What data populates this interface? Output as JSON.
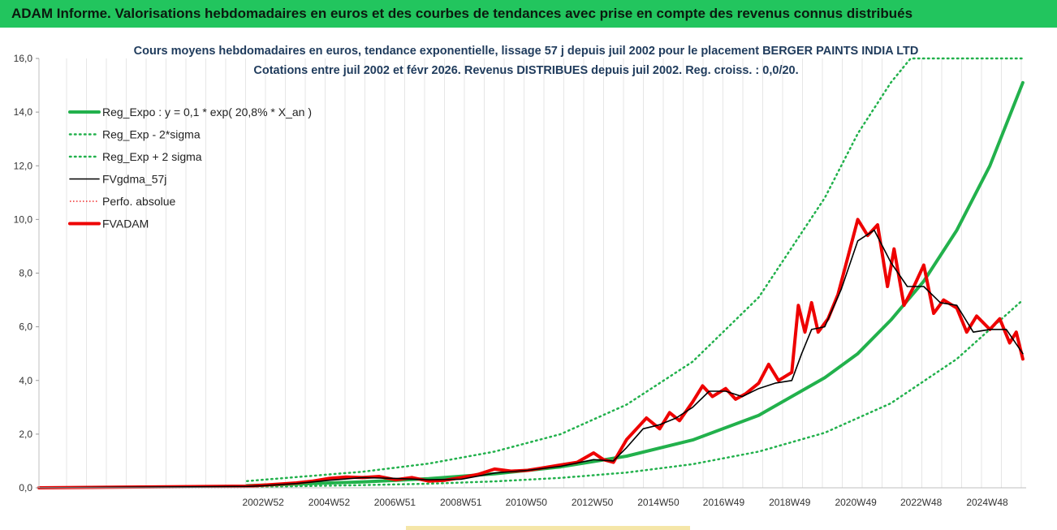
{
  "banner": {
    "title": "ADAM Informe. Valorisations hebdomadaires en euros et des courbes de tendances avec prise en compte des revenus connus distribués"
  },
  "colors": {
    "banner": "#22c55e",
    "trend": "#22b14c",
    "sigma": "#22b14c",
    "smooth": "#000000",
    "price": "#ee0000",
    "perf": "#ee0000"
  },
  "chart_data": {
    "type": "line",
    "title_lines": [
      "Cours moyens hebdomadaires en euros, tendance exponentielle, lissage 57 j depuis juil 2002 pour le placement BERGER PAINTS INDIA LTD",
      "Cotations entre juil 2002 et févr 2026. Revenus DISTRIBUES depuis juil 2002. Reg. croiss. : 0,0/20."
    ],
    "ylim": [
      0,
      16
    ],
    "xlim": [
      1996.2,
      2026.1
    ],
    "y_ticks": [
      "0,0",
      "2,0",
      "4,0",
      "6,0",
      "8,0",
      "10,0",
      "12,0",
      "14,0",
      "16,0"
    ],
    "x_ticks": [
      {
        "label": "2002W52",
        "x": 2002.99
      },
      {
        "label": "2004W52",
        "x": 2004.99
      },
      {
        "label": "2006W51",
        "x": 2006.98
      },
      {
        "label": "2008W51",
        "x": 2008.98
      },
      {
        "label": "2010W50",
        "x": 2010.96
      },
      {
        "label": "2012W50",
        "x": 2012.96
      },
      {
        "label": "2014W50",
        "x": 2014.96
      },
      {
        "label": "2016W49",
        "x": 2016.94
      },
      {
        "label": "2018W49",
        "x": 2018.94
      },
      {
        "label": "2020W49",
        "x": 2020.94
      },
      {
        "label": "2022W48",
        "x": 2022.92
      },
      {
        "label": "2024W48",
        "x": 2024.92
      }
    ],
    "grid": "vertical",
    "legend_position": "top-left",
    "series": [
      {
        "name": "Reg_Expo : y = 0,1 * exp( 20,8% *  X_an )",
        "style": "solid-thick",
        "color": "#22b14c",
        "x": [
          2002.5,
          2004,
          2006,
          2008,
          2010,
          2012,
          2014,
          2016,
          2018,
          2020,
          2021,
          2022,
          2023,
          2024,
          2025,
          2026
        ],
        "y": [
          0.08,
          0.14,
          0.22,
          0.34,
          0.52,
          0.78,
          1.18,
          1.78,
          2.7,
          4.1,
          5.0,
          6.25,
          7.7,
          9.6,
          12.0,
          15.1
        ]
      },
      {
        "name": "Reg_Exp - 2*sigma",
        "style": "dotted",
        "color": "#22b14c",
        "x": [
          2002.5,
          2004,
          2006,
          2008,
          2010,
          2012,
          2014,
          2016,
          2018,
          2020,
          2022,
          2024,
          2026
        ],
        "y": [
          0.03,
          0.06,
          0.1,
          0.15,
          0.24,
          0.37,
          0.57,
          0.88,
          1.35,
          2.05,
          3.15,
          4.8,
          7.0
        ]
      },
      {
        "name": "Reg_Exp + 2 sigma",
        "style": "dotted",
        "color": "#22b14c",
        "x": [
          2002.5,
          2004,
          2006,
          2008,
          2010,
          2012,
          2014,
          2016,
          2018,
          2020,
          2021,
          2022,
          2022.6,
          2023.5,
          2026
        ],
        "y": [
          0.25,
          0.4,
          0.6,
          0.9,
          1.35,
          2.0,
          3.1,
          4.7,
          7.1,
          10.8,
          13.2,
          15.1,
          16.0,
          16.0,
          16.0
        ]
      },
      {
        "name": "FVgdma_57j",
        "style": "solid",
        "color": "#000000",
        "x": [
          1996.2,
          2002.5,
          2003,
          2004,
          2005,
          2006,
          2007,
          2008,
          2009,
          2010,
          2011,
          2012,
          2013,
          2013.6,
          2014,
          2014.5,
          2015,
          2015.5,
          2016,
          2016.5,
          2017,
          2017.5,
          2018,
          2018.5,
          2019,
          2019.3,
          2019.6,
          2020,
          2020.5,
          2021,
          2021.5,
          2022,
          2022.5,
          2023,
          2023.5,
          2024,
          2024.5,
          2025,
          2025.5,
          2026
        ],
        "y": [
          0.0,
          0.05,
          0.08,
          0.16,
          0.28,
          0.38,
          0.35,
          0.3,
          0.32,
          0.55,
          0.65,
          0.8,
          1.05,
          1.0,
          1.5,
          2.2,
          2.35,
          2.6,
          3.0,
          3.6,
          3.6,
          3.4,
          3.7,
          3.9,
          4.0,
          5.0,
          5.9,
          6.0,
          7.4,
          9.2,
          9.6,
          8.4,
          7.5,
          7.5,
          6.9,
          6.8,
          5.8,
          5.9,
          5.9,
          5.0
        ]
      },
      {
        "name": "Perfo. absolue",
        "style": "dotted-thin",
        "color": "#ee0000",
        "x": [
          1996.2,
          2002.5
        ],
        "y": [
          0.0,
          0.0
        ]
      },
      {
        "name": "FVADAM",
        "style": "solid-thick",
        "color": "#ee0000",
        "x": [
          1996.2,
          2002.5,
          2003,
          2003.5,
          2004,
          2004.5,
          2005,
          2005.5,
          2006,
          2006.5,
          2007,
          2007.5,
          2008,
          2008.5,
          2009,
          2009.5,
          2010,
          2010.5,
          2011,
          2011.5,
          2012,
          2012.5,
          2013,
          2013.3,
          2013.6,
          2014,
          2014.3,
          2014.6,
          2015,
          2015.3,
          2015.6,
          2016,
          2016.3,
          2016.6,
          2017,
          2017.3,
          2017.6,
          2018,
          2018.3,
          2018.6,
          2019,
          2019.2,
          2019.4,
          2019.6,
          2019.8,
          2020.1,
          2020.4,
          2020.7,
          2021,
          2021.3,
          2021.6,
          2021.9,
          2022.1,
          2022.4,
          2022.7,
          2023,
          2023.3,
          2023.6,
          2024,
          2024.3,
          2024.6,
          2025,
          2025.3,
          2025.6,
          2025.8,
          2026
        ],
        "y": [
          0.0,
          0.06,
          0.1,
          0.14,
          0.18,
          0.25,
          0.35,
          0.4,
          0.38,
          0.42,
          0.3,
          0.38,
          0.25,
          0.28,
          0.38,
          0.5,
          0.7,
          0.62,
          0.65,
          0.75,
          0.85,
          0.95,
          1.3,
          1.05,
          0.95,
          1.8,
          2.2,
          2.6,
          2.2,
          2.8,
          2.5,
          3.2,
          3.8,
          3.4,
          3.7,
          3.3,
          3.5,
          3.9,
          4.6,
          4.0,
          4.3,
          6.8,
          5.8,
          6.9,
          5.8,
          6.3,
          7.2,
          8.6,
          10.0,
          9.4,
          9.8,
          7.5,
          8.9,
          6.8,
          7.5,
          8.3,
          6.5,
          7.0,
          6.7,
          5.8,
          6.4,
          5.9,
          6.3,
          5.4,
          5.8,
          4.8
        ]
      }
    ]
  }
}
